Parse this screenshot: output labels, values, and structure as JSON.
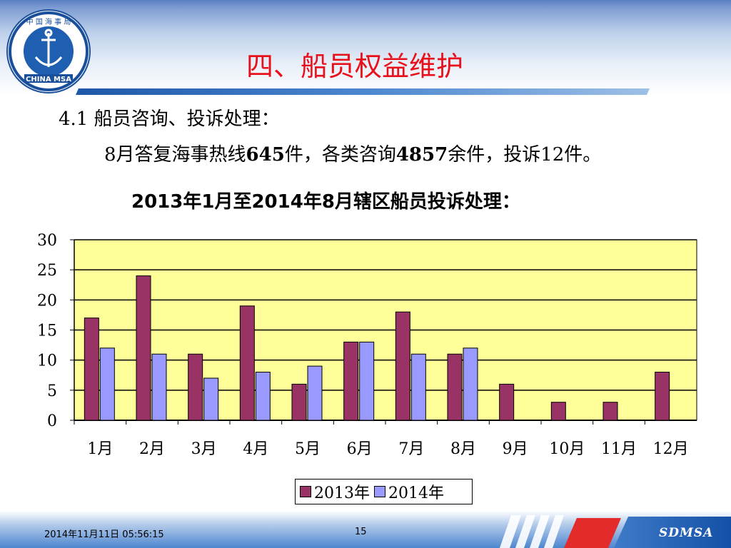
{
  "header": {
    "title": "四、船员权益维护",
    "logo_text_top": "中 国 海 事 局",
    "logo_text_bottom": "CHINA MSA"
  },
  "content": {
    "subtitle": "4.1  船员咨询、投诉处理：",
    "line_parts": [
      "8月答复海事热线",
      "645",
      "件，各类咨询",
      "4857",
      "余件，投诉12件。"
    ]
  },
  "chart_data": {
    "type": "bar",
    "title": "2013年1月至2014年8月辖区船员投诉处理：",
    "categories": [
      "1月",
      "2月",
      "3月",
      "4月",
      "5月",
      "6月",
      "7月",
      "8月",
      "9月",
      "10月",
      "11月",
      "12月"
    ],
    "series": [
      {
        "name": "2013年",
        "values": [
          17,
          24,
          11,
          19,
          6,
          13,
          18,
          11,
          6,
          3,
          3,
          8
        ],
        "color": "#993366"
      },
      {
        "name": "2014年",
        "values": [
          12,
          11,
          7,
          8,
          9,
          13,
          11,
          12,
          null,
          null,
          null,
          null
        ],
        "color": "#9999ff"
      }
    ],
    "yticks": [
      0,
      5,
      10,
      15,
      20,
      25,
      30
    ],
    "ylim": [
      0,
      30
    ],
    "grid": true,
    "plot_background": "#ffff99",
    "legend_position": "bottom"
  },
  "footer": {
    "date": "2014年11月11日  05:56:15",
    "page": "15",
    "brand": "SDMSA"
  },
  "colors": {
    "title": "#e8111b",
    "header_blue": "#2a64b8",
    "footer_blue": "#1b5fb6",
    "footer_red": "#e32b2b"
  }
}
